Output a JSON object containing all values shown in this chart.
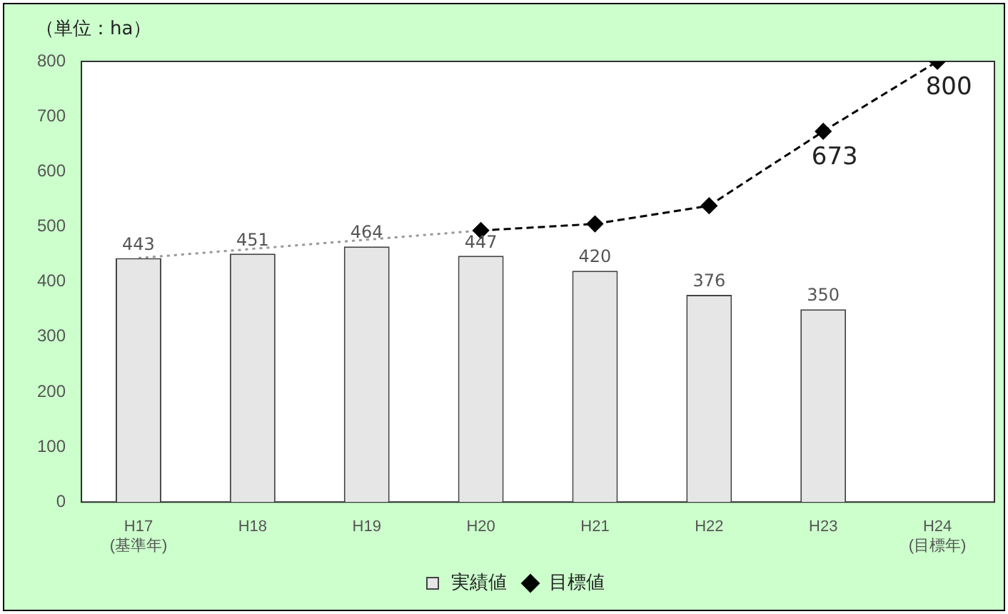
{
  "chart_data": {
    "type": "bar",
    "ylabel": "（単位：ha）",
    "categories": [
      "H17\n(基準年)",
      "H18",
      "H19",
      "H20",
      "H21",
      "H22",
      "H23",
      "H24\n(目標年)"
    ],
    "series": [
      {
        "name": "実績値",
        "color": "#e6e6e6",
        "values": [
          443,
          451,
          464,
          447,
          420,
          376,
          350,
          null
        ],
        "value_labels": [
          "443",
          "451",
          "464",
          "447",
          "420",
          "376",
          "350",
          null
        ]
      },
      {
        "name": "目標値",
        "type": "line",
        "color": "#000000",
        "marker": "diamond",
        "line_style": "dashed",
        "values": [
          null,
          null,
          null,
          493,
          505,
          538,
          673,
          800
        ],
        "value_labels": [
          null,
          null,
          null,
          null,
          null,
          null,
          "673",
          "800"
        ]
      },
      {
        "type": "line",
        "color": "#999999",
        "marker": "none",
        "line_style": "dotted",
        "values": [
          443,
          null,
          null,
          493,
          null,
          null,
          null,
          null
        ]
      }
    ],
    "ylim": [
      0,
      800
    ],
    "yticks": [
      0,
      100,
      200,
      300,
      400,
      500,
      600,
      700,
      800
    ],
    "grid": false,
    "legend": "bottom"
  }
}
